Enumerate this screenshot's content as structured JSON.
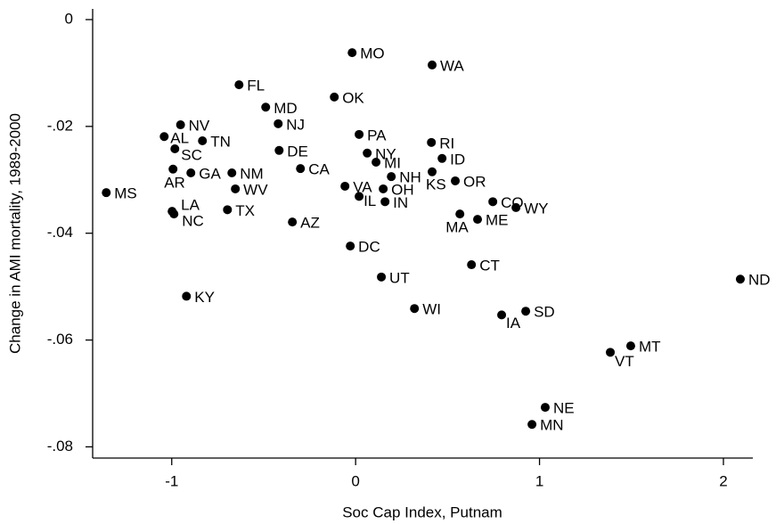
{
  "chart_data": {
    "type": "scatter",
    "xlabel": "Soc Cap Index, Putnam",
    "ylabel": "Change in AMI mortality, 1989-2000",
    "labels": [
      "MS",
      "MO",
      "WA",
      "FL",
      "OK",
      "MD",
      "NJ",
      "NV",
      "AL",
      "PA",
      "TN",
      "RI",
      "SC",
      "DE",
      "NY",
      "ID",
      "MI",
      "CA",
      "AR",
      "GA",
      "NM",
      "KS",
      "NH",
      "OR",
      "VA",
      "WV",
      "OH",
      "IL",
      "CO",
      "IN",
      "WY",
      "TX",
      "LA",
      "NC",
      "MA",
      "ME",
      "AZ",
      "DC",
      "CT",
      "UT",
      "ND",
      "KY",
      "WI",
      "SD",
      "IA",
      "MT",
      "VT",
      "NE",
      "MN"
    ],
    "x": [
      -1.356,
      -0.019,
      0.416,
      -0.634,
      -0.116,
      -0.489,
      -0.421,
      -0.952,
      -1.041,
      0.019,
      -0.833,
      0.412,
      -0.983,
      -0.416,
      0.063,
      0.47,
      0.111,
      -0.3,
      -0.993,
      -0.896,
      -0.673,
      0.416,
      0.194,
      0.542,
      -0.058,
      -0.654,
      0.15,
      0.019,
      0.746,
      0.16,
      0.872,
      -0.697,
      -0.998,
      -0.988,
      0.567,
      0.663,
      -0.344,
      -0.029,
      0.63,
      0.14,
      2.092,
      -0.92,
      0.32,
      0.925,
      0.794,
      1.496,
      1.385,
      1.031,
      0.959
    ],
    "values": [
      -0.0324,
      -0.0062,
      -0.0085,
      -0.0122,
      -0.0145,
      -0.0164,
      -0.0195,
      -0.0197,
      -0.0219,
      -0.0215,
      -0.0227,
      -0.023,
      -0.0242,
      -0.0245,
      -0.025,
      -0.026,
      -0.0267,
      -0.0279,
      -0.028,
      -0.0287,
      -0.0287,
      -0.0285,
      -0.0294,
      -0.0302,
      -0.0312,
      -0.0317,
      -0.0317,
      -0.0331,
      -0.0341,
      -0.0341,
      -0.0352,
      -0.0356,
      -0.0359,
      -0.0364,
      -0.0364,
      -0.0374,
      -0.0379,
      -0.0424,
      -0.0459,
      -0.0482,
      -0.0486,
      -0.0518,
      -0.0541,
      -0.0546,
      -0.0553,
      -0.0611,
      -0.0623,
      -0.0726,
      -0.0758
    ],
    "color": "#000000",
    "xlim": [
      -1.43,
      2.16
    ],
    "ylim": [
      -0.0821,
      0.002
    ],
    "xticks": [
      -1,
      0,
      1,
      2
    ],
    "yticks": [
      0,
      {
        "value": -0.02,
        "label": "-.02"
      },
      {
        "value": -0.04,
        "label": "-.04"
      },
      {
        "value": -0.06,
        "label": "-.06"
      },
      {
        "value": -0.08,
        "label": "-.08"
      }
    ]
  }
}
